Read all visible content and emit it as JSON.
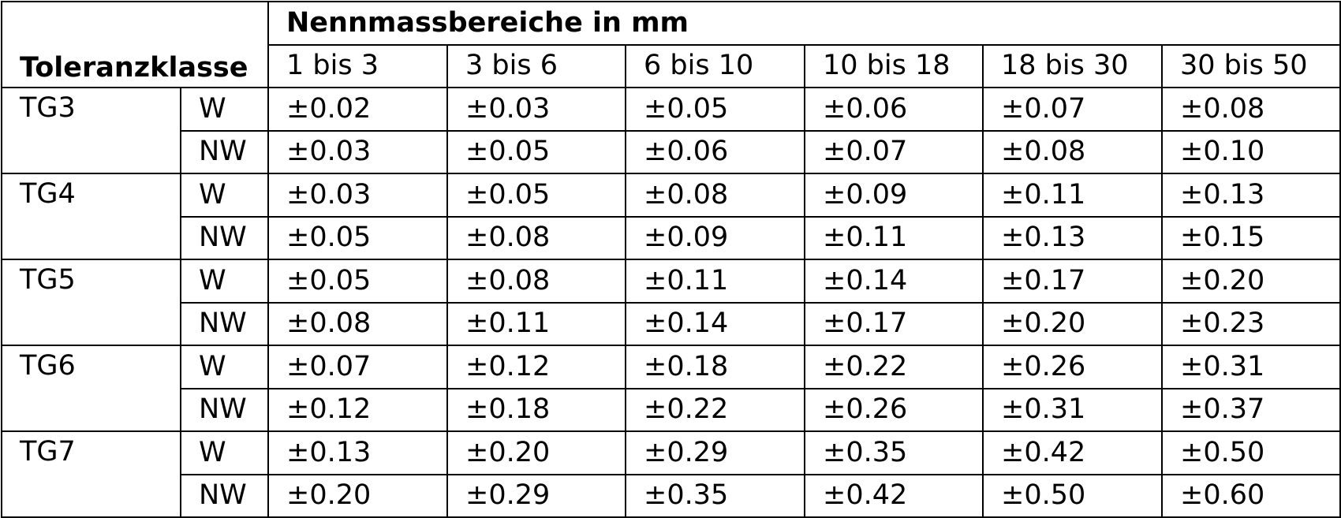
{
  "table": {
    "corner_header": "Toleranzklasse",
    "group_header": "Nennmassbereiche in mm",
    "ranges": [
      "1 bis 3",
      "3 bis 6",
      "6 bis 10",
      "10 bis 18",
      "18 bis 30",
      "30 bis 50"
    ],
    "classes": [
      {
        "name": "TG3",
        "rows": [
          {
            "type": "W",
            "values": [
              "±0.02",
              "±0.03",
              "±0.05",
              "±0.06",
              "±0.07",
              "±0.08"
            ]
          },
          {
            "type": "NW",
            "values": [
              "±0.03",
              "±0.05",
              "±0.06",
              "±0.07",
              "±0.08",
              "±0.10"
            ]
          }
        ]
      },
      {
        "name": "TG4",
        "rows": [
          {
            "type": "W",
            "values": [
              "±0.03",
              "±0.05",
              "±0.08",
              "±0.09",
              "±0.11",
              "±0.13"
            ]
          },
          {
            "type": "NW",
            "values": [
              "±0.05",
              "±0.08",
              "±0.09",
              "±0.11",
              "±0.13",
              "±0.15"
            ]
          }
        ]
      },
      {
        "name": "TG5",
        "rows": [
          {
            "type": "W",
            "values": [
              "±0.05",
              "±0.08",
              "±0.11",
              "±0.14",
              "±0.17",
              "±0.20"
            ]
          },
          {
            "type": "NW",
            "values": [
              "±0.08",
              "±0.11",
              "±0.14",
              "±0.17",
              "±0.20",
              "±0.23"
            ]
          }
        ]
      },
      {
        "name": "TG6",
        "rows": [
          {
            "type": "W",
            "values": [
              "±0.07",
              "±0.12",
              "±0.18",
              "±0.22",
              "±0.26",
              "±0.31"
            ]
          },
          {
            "type": "NW",
            "values": [
              "±0.12",
              "±0.18",
              "±0.22",
              "±0.26",
              "±0.31",
              "±0.37"
            ]
          }
        ]
      },
      {
        "name": "TG7",
        "rows": [
          {
            "type": "W",
            "values": [
              "±0.13",
              "±0.20",
              "±0.29",
              "±0.35",
              "±0.42",
              "±0.50"
            ]
          },
          {
            "type": "NW",
            "values": [
              "±0.20",
              "±0.29",
              "±0.35",
              "±0.42",
              "±0.50",
              "±0.60"
            ]
          }
        ]
      }
    ]
  }
}
